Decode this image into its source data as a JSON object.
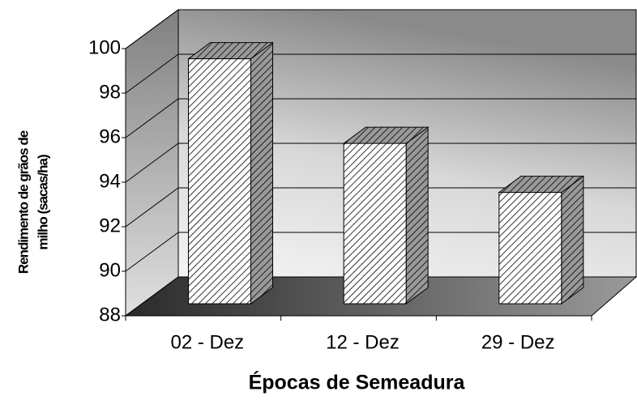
{
  "chart_data": {
    "type": "bar3d",
    "categories": [
      "02 - Dez",
      "12 - Dez",
      "29 - Dez"
    ],
    "values": [
      99,
      95.2,
      93
    ],
    "ylim": [
      88,
      100
    ],
    "yticks": [
      88,
      90,
      92,
      94,
      96,
      98,
      100
    ],
    "grid": true,
    "xlabel": "Épocas de Semeadura",
    "ylabel": [
      "Rendimento de grãos de",
      "milho (sacas/ha)"
    ]
  }
}
